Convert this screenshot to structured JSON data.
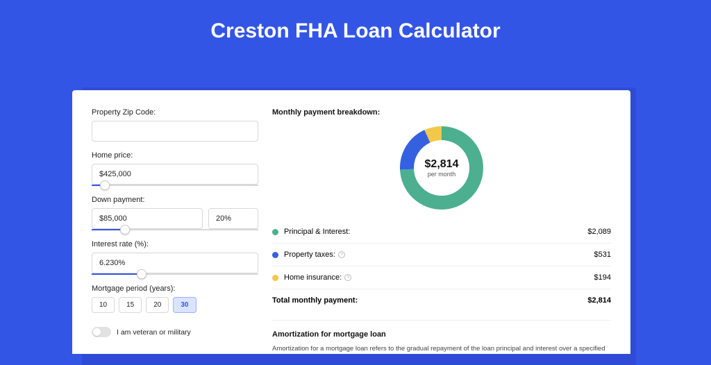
{
  "page": {
    "title": "Creston FHA Loan Calculator",
    "background_color": "#3355e6",
    "card_bg": "#ffffff",
    "shadow_bg": "#2f4bd6"
  },
  "form": {
    "zip": {
      "label": "Property Zip Code:",
      "value": ""
    },
    "home_price": {
      "label": "Home price:",
      "value": "$425,000",
      "slider_pct": 8
    },
    "down_payment": {
      "label": "Down payment:",
      "value": "$85,000",
      "pct_value": "20%",
      "slider_pct": 20
    },
    "interest_rate": {
      "label": "Interest rate (%):",
      "value": "6.230%",
      "slider_pct": 30
    },
    "mortgage_period": {
      "label": "Mortgage period (years):",
      "options": [
        "10",
        "15",
        "20",
        "30"
      ],
      "selected_index": 3
    },
    "veteran": {
      "label": "I am veteran or military",
      "checked": false
    }
  },
  "breakdown": {
    "heading": "Monthly payment breakdown:",
    "donut": {
      "amount": "$2,814",
      "sub": "per month",
      "segments": [
        {
          "label": "Principal & Interest:",
          "value": "$2,089",
          "color": "#4caf8f",
          "fraction": 0.742
        },
        {
          "label": "Property taxes:",
          "value": "$531",
          "color": "#3560e0",
          "fraction": 0.189,
          "info": true
        },
        {
          "label": "Home insurance:",
          "value": "$194",
          "color": "#f2c84b",
          "fraction": 0.069,
          "info": true
        }
      ],
      "ring_thickness": 20,
      "radius": 50
    },
    "total": {
      "label": "Total monthly payment:",
      "value": "$2,814"
    }
  },
  "amortization": {
    "heading": "Amortization for mortgage loan",
    "text": "Amortization for a mortgage loan refers to the gradual repayment of the loan principal and interest over a specified"
  },
  "styling": {
    "slider_fill_color": "#3355e6",
    "slider_track_color": "#d8d8d8",
    "input_border": "#d8d8d8",
    "section_divider": "#eeeeee",
    "label_fontsize": 11,
    "heading_fontsize": 11,
    "title_fontsize": 30,
    "active_period_bg": "#dbe4ff"
  }
}
